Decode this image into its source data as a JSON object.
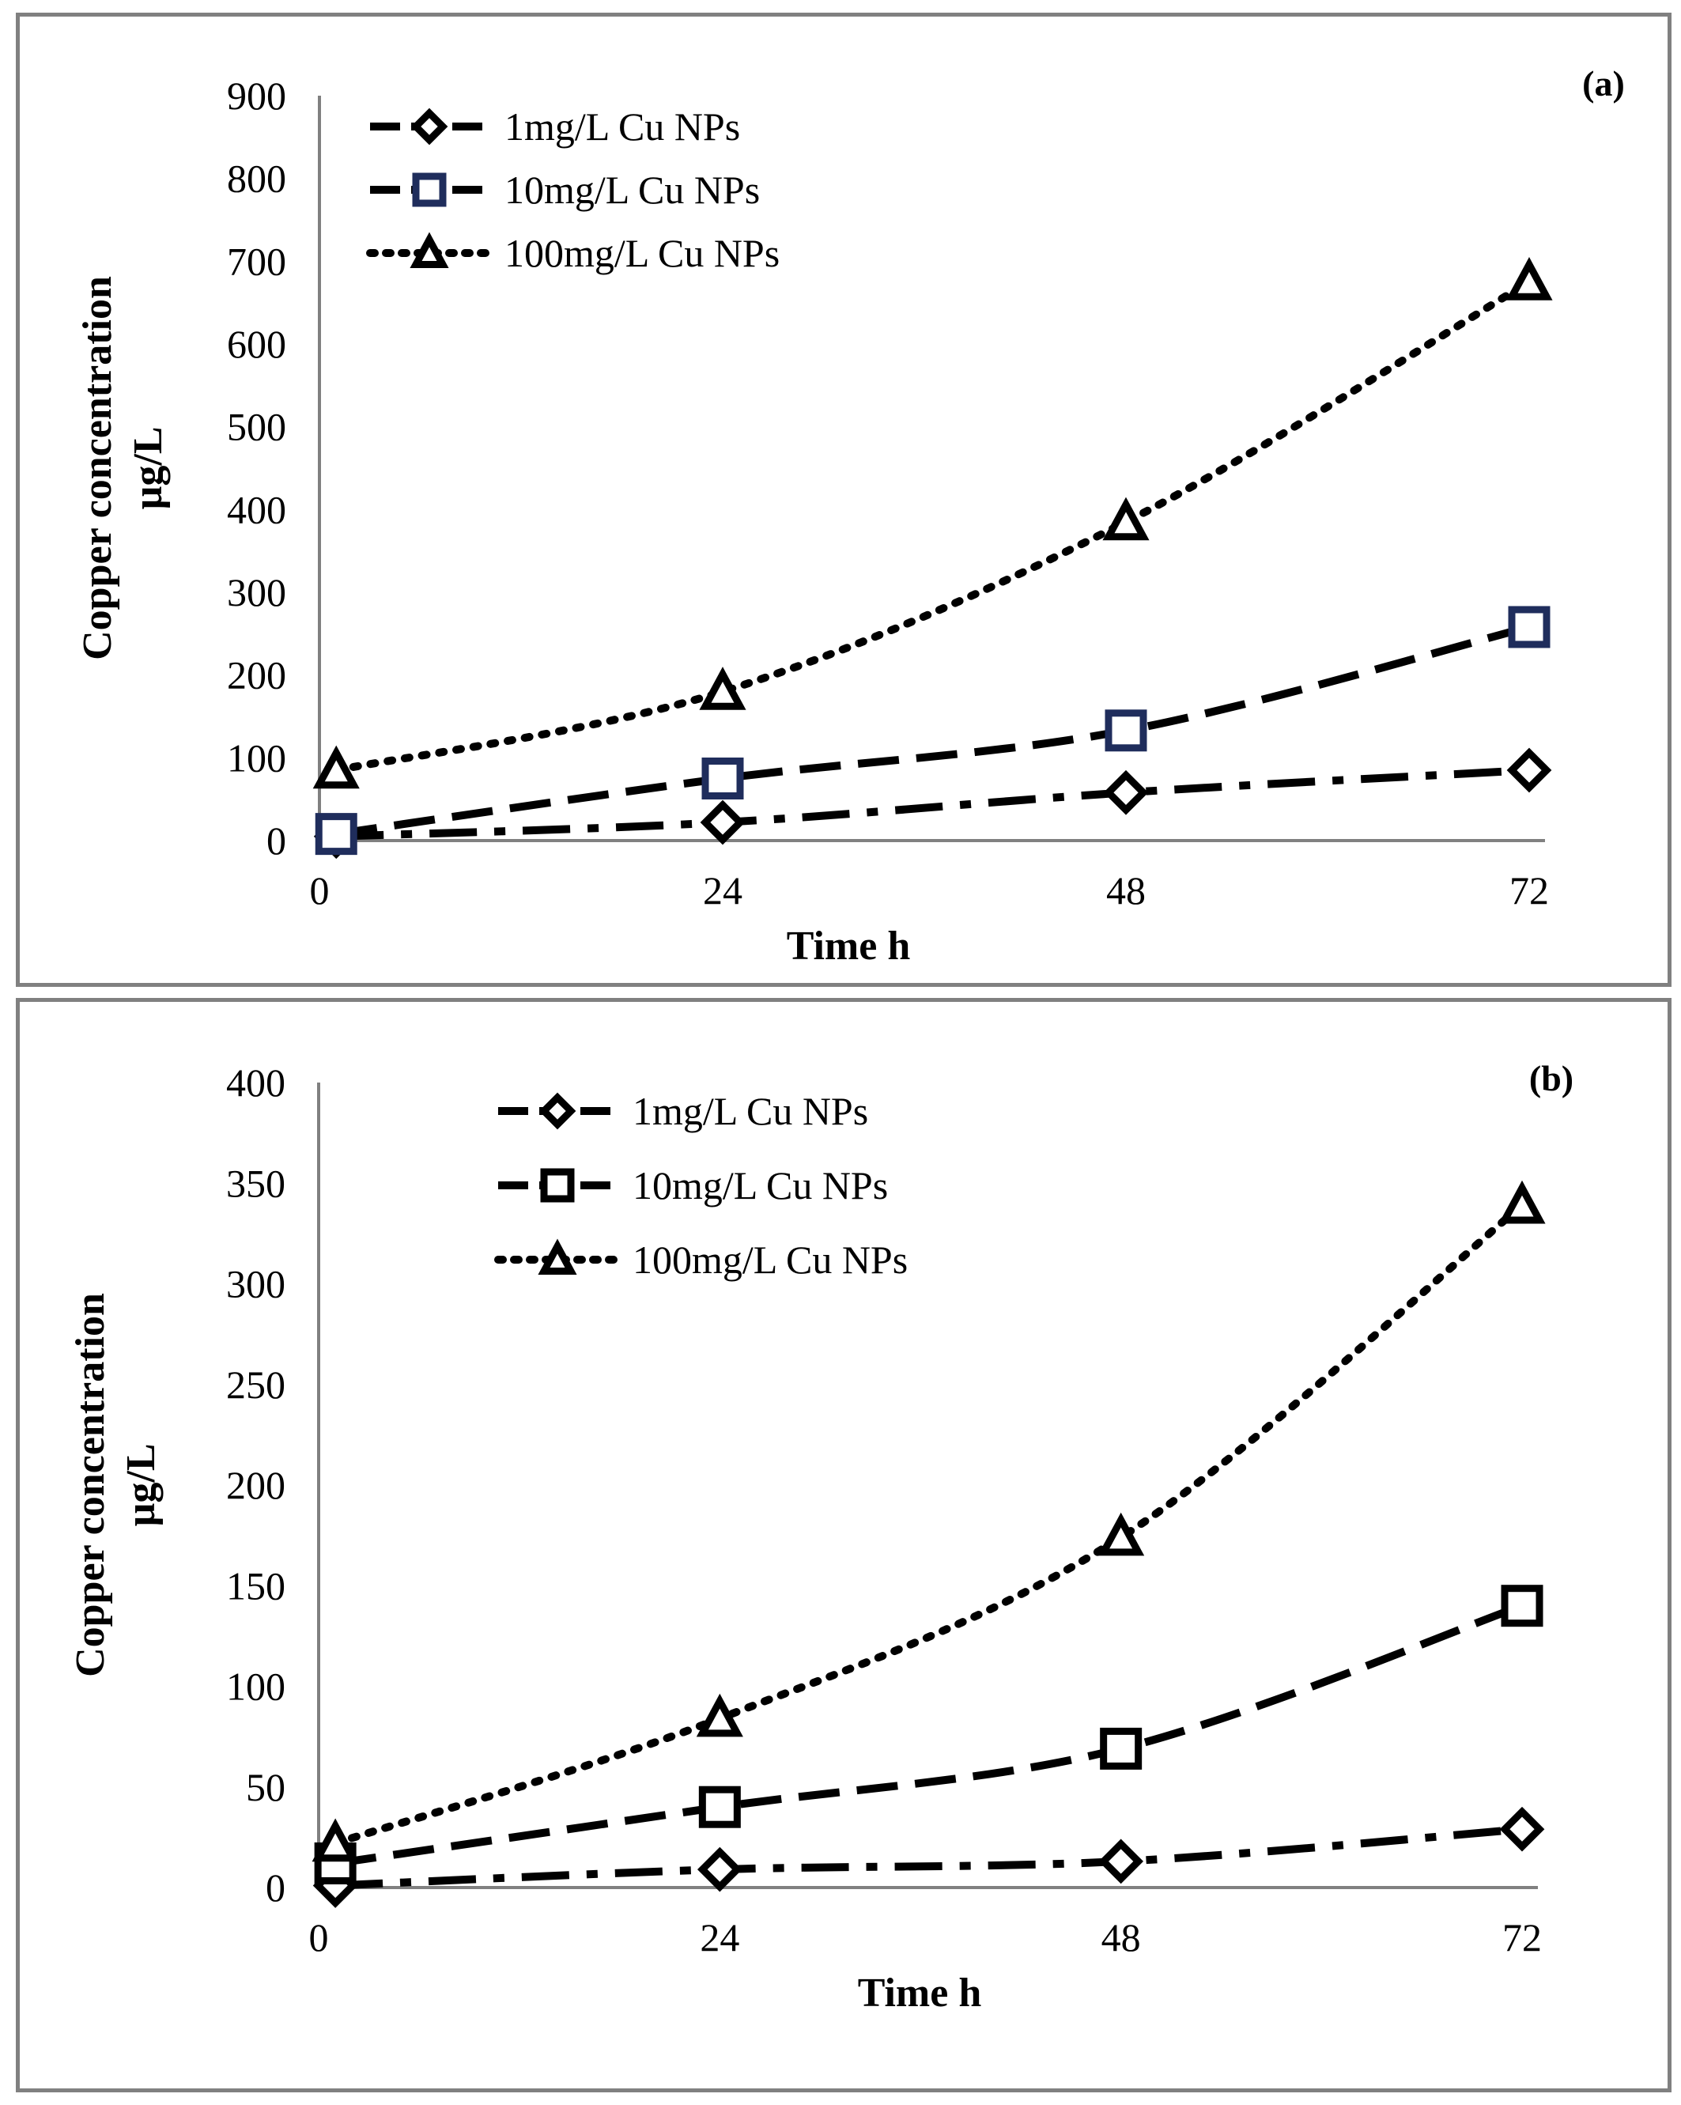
{
  "chart_data": [
    {
      "type": "line",
      "panel_label": "(a)",
      "xlabel": "Time h",
      "ylabel_line1": "Copper concentration",
      "ylabel_line2": "µg/L",
      "x_ticks": [
        "0",
        "24",
        "48",
        "72"
      ],
      "y_ticks": [
        "0",
        "100",
        "200",
        "300",
        "400",
        "500",
        "600",
        "700",
        "800",
        "900"
      ],
      "xlim": [
        0,
        72
      ],
      "ylim": [
        0,
        900
      ],
      "legend_position": "top-left",
      "series": [
        {
          "name": "1mg/L Cu NPs",
          "marker": "diamond",
          "dash": "dashdot",
          "color": "#000000",
          "x": [
            1,
            24,
            48,
            72
          ],
          "values": [
            5,
            22,
            58,
            85
          ]
        },
        {
          "name": "10mg/L Cu NPs",
          "marker": "square",
          "dash": "dash",
          "color": "#1f2d5c",
          "x": [
            1,
            24,
            48,
            72
          ],
          "values": [
            8,
            75,
            133,
            258
          ]
        },
        {
          "name": "100mg/L Cu NPs",
          "marker": "triangle",
          "dash": "dot",
          "color": "#000000",
          "x": [
            1,
            24,
            48,
            72
          ],
          "values": [
            85,
            180,
            385,
            675
          ]
        }
      ]
    },
    {
      "type": "line",
      "panel_label": "(b)",
      "xlabel": "Time h",
      "ylabel_line1": "Copper concentration",
      "ylabel_line2": "µg/L",
      "x_ticks": [
        "0",
        "24",
        "48",
        "72"
      ],
      "y_ticks": [
        "0",
        "50",
        "100",
        "150",
        "200",
        "250",
        "300",
        "350",
        "400"
      ],
      "xlim": [
        0,
        72
      ],
      "ylim": [
        0,
        400
      ],
      "legend_position": "top-center",
      "series": [
        {
          "name": "1mg/L Cu NPs",
          "marker": "diamond",
          "dash": "dashdot",
          "color": "#000000",
          "x": [
            1,
            24,
            48,
            72
          ],
          "values": [
            1,
            9,
            13,
            29
          ]
        },
        {
          "name": "10mg/L Cu NPs",
          "marker": "square",
          "dash": "dash",
          "color": "#000000",
          "x": [
            1,
            24,
            48,
            72
          ],
          "values": [
            12,
            40,
            69,
            140
          ]
        },
        {
          "name": "100mg/L Cu NPs",
          "marker": "triangle",
          "dash": "dot",
          "color": "#000000",
          "x": [
            1,
            24,
            48,
            72
          ],
          "values": [
            22,
            84,
            174,
            339
          ]
        }
      ]
    }
  ]
}
